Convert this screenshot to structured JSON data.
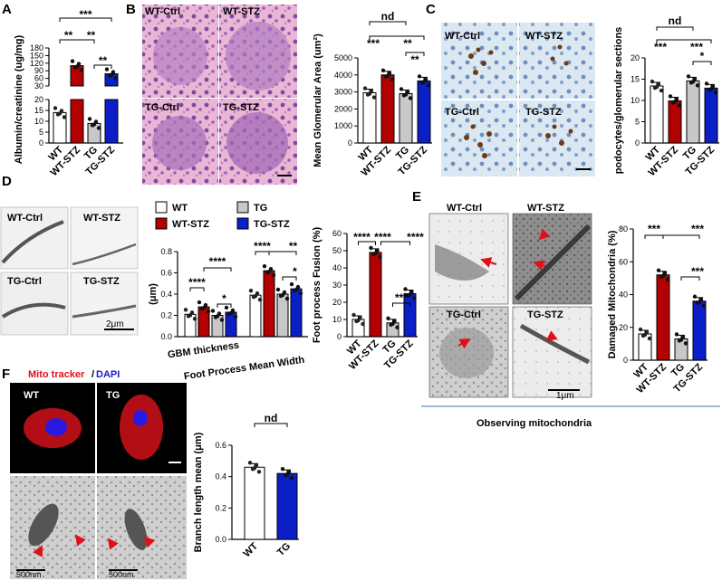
{
  "colors": {
    "wt": "#ffffff",
    "wt_stz": "#b30000",
    "tg": "#c8c8c8",
    "tg_stz": "#0a1fc8",
    "arrow": "#e0101a",
    "axis": "#000000"
  },
  "panels": {
    "A": "A",
    "B": "B",
    "C": "C",
    "D": "D",
    "E": "E",
    "F": "F"
  },
  "micro_labels": {
    "b": [
      "WT-Ctrl",
      "WT-STZ",
      "TG-Ctrl",
      "TG-STZ"
    ],
    "c": [
      "WT-Ctrl",
      "WT-STZ",
      "TG-Ctrl",
      "TG-STZ"
    ],
    "d": [
      "WT-Ctrl",
      "WT-STZ",
      "TG-Ctrl",
      "TG-STZ"
    ],
    "e": [
      "WT-Ctrl",
      "WT-STZ",
      "TG-Ctrl",
      "TG-STZ"
    ],
    "f": [
      "WT",
      "TG"
    ]
  },
  "scale_bars": {
    "d": "2μm",
    "e": "1μm",
    "f1": "500nm",
    "f2": "500nm"
  },
  "e_caption": "Observing mitochondria",
  "f_stain": {
    "mito": "Mito tracker",
    "slash": "/",
    "dapi": "DAPI"
  },
  "legend_d": [
    "WT",
    "TG",
    "WT-STZ",
    "TG-STZ"
  ],
  "chart_data": [
    {
      "id": "A",
      "type": "bar",
      "ylabel": "Albumin/creatinine (ug/mg)",
      "categories": [
        "WT",
        "WT-STZ",
        "TG",
        "TG-STZ"
      ],
      "values": [
        14,
        110,
        9,
        78
      ],
      "yticks_lower": [
        "0",
        "5",
        "10",
        "15",
        "20"
      ],
      "yticks_upper": [
        "30",
        "60",
        "90",
        "120",
        "150",
        "180"
      ],
      "annotations": [
        "***",
        "**",
        "**",
        "**"
      ]
    },
    {
      "id": "B",
      "type": "bar",
      "ylabel": "Mean Glomerular Area (um²)",
      "categories": [
        "WT",
        "WT-STZ",
        "TG",
        "TG-STZ"
      ],
      "values": [
        2950,
        4000,
        2900,
        3650
      ],
      "ylim": [
        0,
        5000
      ],
      "yticks": [
        "0",
        "1000",
        "2000",
        "3000",
        "4000",
        "5000"
      ],
      "annotations": [
        "nd",
        "***",
        "**",
        "**"
      ]
    },
    {
      "id": "C",
      "type": "bar",
      "ylabel": "podocytes/glomerular sections",
      "categories": [
        "WT",
        "WT-STZ",
        "TG",
        "TG-STZ"
      ],
      "values": [
        13.4,
        9.9,
        14.6,
        12.9
      ],
      "ylim": [
        0,
        20
      ],
      "yticks": [
        "0",
        "5",
        "10",
        "15",
        "20"
      ],
      "annotations": [
        "nd",
        "***",
        "***",
        "*"
      ]
    },
    {
      "id": "D1",
      "type": "bar",
      "ylabel": "(μm)",
      "groups": [
        "GBM thickness",
        "Foot Process Mean Width"
      ],
      "series": [
        {
          "name": "WT",
          "values": [
            0.21,
            0.39
          ]
        },
        {
          "name": "WT-STZ",
          "values": [
            0.28,
            0.62
          ]
        },
        {
          "name": "TG",
          "values": [
            0.2,
            0.4
          ]
        },
        {
          "name": "TG-STZ",
          "values": [
            0.23,
            0.45
          ]
        }
      ],
      "ylim": [
        0,
        0.8
      ],
      "yticks": [
        "0.0",
        "0.2",
        "0.4",
        "0.6",
        "0.8"
      ],
      "annotations": [
        "****",
        "****",
        "*",
        "****",
        "**",
        "*"
      ]
    },
    {
      "id": "D2",
      "type": "bar",
      "ylabel": "Foot process Fusion (%)",
      "categories": [
        "WT",
        "WT-STZ",
        "TG",
        "TG-STZ"
      ],
      "values": [
        10,
        49,
        8,
        25
      ],
      "ylim": [
        0,
        60
      ],
      "yticks": [
        "0",
        "10",
        "20",
        "30",
        "40",
        "50",
        "60"
      ],
      "annotations": [
        "****",
        "****",
        "****",
        "***"
      ]
    },
    {
      "id": "E",
      "type": "bar",
      "ylabel": "Damaged Mitochondria (%)",
      "categories": [
        "WT",
        "WT-STZ",
        "TG",
        "TG-STZ"
      ],
      "values": [
        16,
        52,
        13,
        36
      ],
      "ylim": [
        0,
        80
      ],
      "yticks": [
        "0",
        "20",
        "40",
        "60",
        "80"
      ],
      "annotations": [
        "***",
        "***",
        "***"
      ]
    },
    {
      "id": "F",
      "type": "bar",
      "ylabel": "Branch length mean (μm)",
      "categories": [
        "WT",
        "TG"
      ],
      "values": [
        0.46,
        0.42
      ],
      "ylim": [
        0,
        0.6
      ],
      "yticks": [
        "0.0",
        "0.2",
        "0.4",
        "0.6"
      ],
      "annotations": [
        "nd"
      ]
    }
  ]
}
